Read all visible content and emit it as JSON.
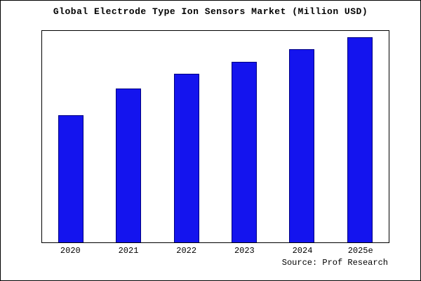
{
  "chart_data": {
    "type": "bar",
    "title": "Global Electrode Type Ion Sensors Market (Million USD)",
    "categories": [
      "2020",
      "2021",
      "2022",
      "2023",
      "2024",
      "2025e"
    ],
    "values": [
      62,
      75,
      82,
      88,
      94,
      100
    ],
    "ylim": [
      0,
      103
    ],
    "xlabel": "",
    "ylabel": "",
    "grid": false,
    "legend": false,
    "bar_color": "#1414ee",
    "bar_edge_color": "#000080",
    "source": "Source: Prof Research"
  }
}
